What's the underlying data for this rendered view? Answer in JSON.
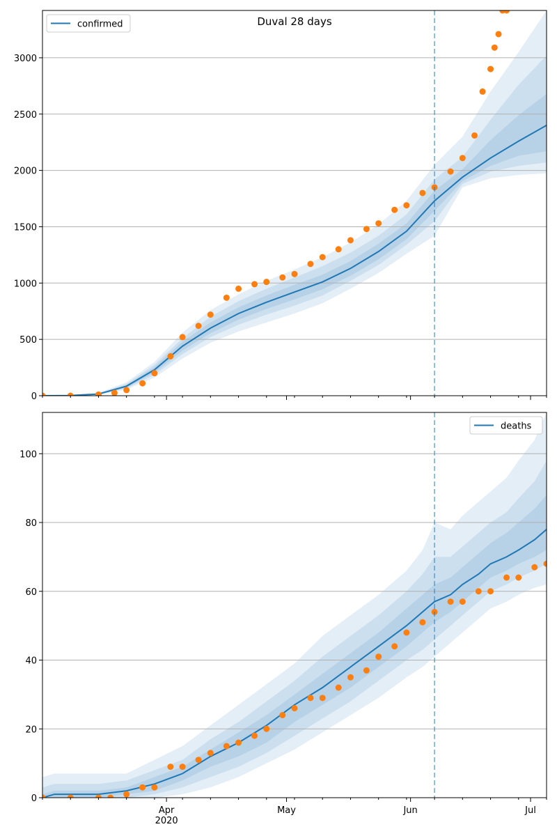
{
  "chart_data": [
    {
      "type": "line",
      "title": "Duval 28 days",
      "xlabel": "",
      "ylabel": "",
      "ylim": [
        0,
        3420
      ],
      "yticks": [
        0,
        500,
        1000,
        1500,
        2000,
        2500,
        3000
      ],
      "grid": "horizontal",
      "legend_placement": "upper-left",
      "series": [
        {
          "name": "confirmed",
          "type": "line",
          "color": "#1f77b4",
          "x": [
            "2020-03-01",
            "2020-03-08",
            "2020-03-15",
            "2020-03-22",
            "2020-03-29",
            "2020-04-05",
            "2020-04-12",
            "2020-04-19",
            "2020-04-26",
            "2020-05-03",
            "2020-05-10",
            "2020-05-17",
            "2020-05-24",
            "2020-05-31",
            "2020-06-07",
            "2020-06-14",
            "2020-06-21",
            "2020-06-28",
            "2020-07-05"
          ],
          "values": [
            0,
            2,
            15,
            85,
            230,
            440,
            600,
            730,
            830,
            920,
            1010,
            1130,
            1280,
            1460,
            1730,
            1940,
            2110,
            2260,
            2400
          ]
        },
        {
          "name": "",
          "type": "scatter",
          "color": "#ff7f0e",
          "x": [
            "2020-03-01",
            "2020-03-08",
            "2020-03-15",
            "2020-03-19",
            "2020-03-22",
            "2020-03-26",
            "2020-03-29",
            "2020-04-02",
            "2020-04-05",
            "2020-04-09",
            "2020-04-12",
            "2020-04-16",
            "2020-04-19",
            "2020-04-23",
            "2020-04-26",
            "2020-04-30",
            "2020-05-03",
            "2020-05-07",
            "2020-05-10",
            "2020-05-14",
            "2020-05-17",
            "2020-05-21",
            "2020-05-24",
            "2020-05-28",
            "2020-05-31",
            "2020-06-04",
            "2020-06-07",
            "2020-06-11",
            "2020-06-14",
            "2020-06-17",
            "2020-06-19",
            "2020-06-21",
            "2020-06-22",
            "2020-06-23",
            "2020-06-24",
            "2020-06-25"
          ],
          "values": [
            0,
            0,
            10,
            25,
            50,
            110,
            200,
            350,
            520,
            620,
            720,
            870,
            950,
            990,
            1010,
            1050,
            1080,
            1170,
            1230,
            1300,
            1380,
            1480,
            1530,
            1650,
            1690,
            1800,
            1850,
            1990,
            2110,
            2310,
            2700,
            2900,
            3090,
            3210,
            3420,
            3420
          ]
        }
      ],
      "bands": [
        {
          "name": "",
          "color": "#1f77b4",
          "opacity": 0.12,
          "lower": [
            0,
            0,
            8,
            55,
            160,
            330,
            470,
            570,
            650,
            730,
            820,
            950,
            1090,
            1260,
            1420,
            1850,
            1930,
            1960,
            1975
          ],
          "upper": [
            0,
            6,
            25,
            120,
            300,
            560,
            760,
            900,
            1020,
            1120,
            1230,
            1360,
            1520,
            1730,
            2050,
            2300,
            2700,
            3050,
            3420
          ]
        },
        {
          "name": "",
          "color": "#1f77b4",
          "opacity": 0.12,
          "lower": [
            0,
            1,
            10,
            65,
            185,
            370,
            520,
            630,
            720,
            800,
            890,
            1020,
            1160,
            1340,
            1550,
            1880,
            1990,
            2040,
            2070
          ],
          "upper": [
            0,
            4,
            20,
            105,
            275,
            510,
            700,
            840,
            950,
            1050,
            1150,
            1270,
            1420,
            1610,
            1920,
            2120,
            2450,
            2760,
            3020
          ]
        },
        {
          "name": "",
          "color": "#1f77b4",
          "opacity": 0.12,
          "lower": [
            0,
            1,
            12,
            72,
            205,
            400,
            555,
            675,
            770,
            855,
            945,
            1065,
            1210,
            1390,
            1640,
            1905,
            2040,
            2130,
            2170
          ],
          "upper": [
            0,
            3,
            18,
            95,
            255,
            480,
            650,
            785,
            890,
            985,
            1075,
            1195,
            1350,
            1530,
            1820,
            2010,
            2270,
            2490,
            2680
          ]
        }
      ],
      "vline": {
        "x": "2020-06-07",
        "style": "dashed",
        "color": "#1f77b4"
      }
    },
    {
      "type": "line",
      "title": "",
      "xlabel": "",
      "ylabel": "",
      "ylim": [
        0,
        112
      ],
      "yticks": [
        0,
        20,
        40,
        60,
        80,
        100
      ],
      "grid": "horizontal",
      "legend_placement": "upper-right",
      "xtick_labels": [
        {
          "x": "2020-04-01",
          "label": "Apr",
          "sublabel": "2020"
        },
        {
          "x": "2020-05-01",
          "label": "May",
          "sublabel": ""
        },
        {
          "x": "2020-06-01",
          "label": "Jun",
          "sublabel": ""
        },
        {
          "x": "2020-07-01",
          "label": "Jul",
          "sublabel": ""
        }
      ],
      "series": [
        {
          "name": "deaths",
          "type": "line",
          "color": "#1f77b4",
          "x": [
            "2020-03-01",
            "2020-03-04",
            "2020-03-08",
            "2020-03-15",
            "2020-03-22",
            "2020-03-29",
            "2020-04-05",
            "2020-04-12",
            "2020-04-19",
            "2020-04-26",
            "2020-05-03",
            "2020-05-10",
            "2020-05-17",
            "2020-05-24",
            "2020-05-31",
            "2020-06-04",
            "2020-06-07",
            "2020-06-11",
            "2020-06-14",
            "2020-06-18",
            "2020-06-21",
            "2020-06-25",
            "2020-06-28",
            "2020-07-02",
            "2020-07-05"
          ],
          "values": [
            0,
            1,
            1,
            1,
            2,
            4,
            7,
            12,
            16,
            21,
            27,
            32,
            38,
            44,
            50,
            54,
            57,
            59,
            62,
            65,
            68,
            70,
            72,
            75,
            78
          ]
        },
        {
          "name": "",
          "type": "scatter",
          "color": "#ff7f0e",
          "x": [
            "2020-03-01",
            "2020-03-08",
            "2020-03-15",
            "2020-03-18",
            "2020-03-22",
            "2020-03-26",
            "2020-03-29",
            "2020-04-02",
            "2020-04-05",
            "2020-04-09",
            "2020-04-12",
            "2020-04-16",
            "2020-04-19",
            "2020-04-23",
            "2020-04-26",
            "2020-04-30",
            "2020-05-03",
            "2020-05-07",
            "2020-05-10",
            "2020-05-14",
            "2020-05-17",
            "2020-05-21",
            "2020-05-24",
            "2020-05-28",
            "2020-05-31",
            "2020-06-04",
            "2020-06-07",
            "2020-06-11",
            "2020-06-14",
            "2020-06-18",
            "2020-06-21",
            "2020-06-25",
            "2020-06-28",
            "2020-07-02",
            "2020-07-05"
          ],
          "values": [
            0,
            0,
            0,
            0,
            1,
            3,
            3,
            9,
            9,
            11,
            13,
            15,
            16,
            18,
            20,
            24,
            26,
            29,
            29,
            32,
            35,
            37,
            41,
            44,
            48,
            51,
            54,
            57,
            57,
            60,
            60,
            64,
            64,
            67,
            68
          ]
        }
      ],
      "bands": [
        {
          "name": "",
          "color": "#1f77b4",
          "opacity": 0.12,
          "lower": [
            0,
            0,
            0,
            0,
            0,
            0,
            1,
            3,
            6,
            10,
            14,
            19,
            24,
            29,
            35,
            38,
            41,
            45,
            48,
            52,
            55,
            57,
            59,
            61,
            62
          ],
          "upper": [
            6,
            7,
            7,
            7,
            7,
            11,
            15,
            21,
            27,
            33,
            39,
            47,
            53,
            59,
            66,
            72,
            80,
            78,
            82,
            86,
            89,
            93,
            98,
            104,
            112
          ]
        },
        {
          "name": "",
          "color": "#1f77b4",
          "opacity": 0.12,
          "lower": [
            0,
            0,
            0,
            0,
            0,
            1,
            3,
            6,
            9,
            13,
            18,
            23,
            28,
            34,
            40,
            43,
            46,
            50,
            53,
            57,
            60,
            62,
            64,
            66,
            68
          ],
          "upper": [
            3,
            4,
            4,
            4,
            5,
            8,
            11,
            17,
            22,
            28,
            34,
            41,
            47,
            53,
            60,
            65,
            70,
            70,
            73,
            77,
            80,
            83,
            87,
            92,
            98
          ]
        },
        {
          "name": "",
          "color": "#1f77b4",
          "opacity": 0.12,
          "lower": [
            0,
            0,
            0,
            0,
            1,
            2,
            5,
            9,
            12,
            16,
            22,
            27,
            32,
            38,
            44,
            48,
            51,
            54,
            57,
            61,
            64,
            66,
            68,
            70,
            72
          ],
          "upper": [
            1,
            2,
            2,
            2,
            3,
            6,
            9,
            14,
            19,
            24,
            30,
            36,
            42,
            48,
            55,
            59,
            62,
            64,
            67,
            71,
            74,
            77,
            80,
            84,
            88
          ]
        }
      ],
      "vline": {
        "x": "2020-06-07",
        "style": "dashed",
        "color": "#1f77b4"
      }
    }
  ],
  "x_domain": [
    "2020-03-01",
    "2020-07-05"
  ],
  "colors": {
    "grid": "#b0b0b0",
    "axis": "#000000",
    "line": "#1f77b4",
    "scatter": "#ff7f0e",
    "band": "#1f77b4"
  }
}
